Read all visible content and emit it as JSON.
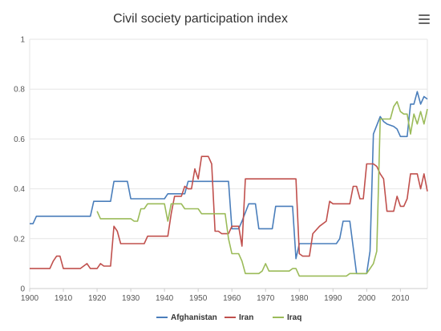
{
  "chart_data": {
    "type": "line",
    "title": "Civil society participation index",
    "xlim": [
      1900,
      2018
    ],
    "ylim": [
      0,
      1
    ],
    "x_ticks": [
      "1900",
      "1910",
      "1920",
      "1930",
      "1940",
      "1950",
      "1960",
      "1970",
      "1980",
      "1990",
      "2000",
      "2010"
    ],
    "y_ticks": [
      "0",
      "0.2",
      "0.4",
      "0.6",
      "0.8",
      "1"
    ],
    "legend_position": "bottom",
    "grid": true,
    "series": [
      {
        "name": "Afghanistan",
        "color": "#4a7ebb",
        "points": [
          [
            1900,
            0.26
          ],
          [
            1901,
            0.26
          ],
          [
            1902,
            0.29
          ],
          [
            1918,
            0.29
          ],
          [
            1919,
            0.35
          ],
          [
            1924,
            0.35
          ],
          [
            1925,
            0.43
          ],
          [
            1929,
            0.43
          ],
          [
            1930,
            0.36
          ],
          [
            1940,
            0.36
          ],
          [
            1941,
            0.38
          ],
          [
            1946,
            0.38
          ],
          [
            1947,
            0.43
          ],
          [
            1959,
            0.43
          ],
          [
            1960,
            0.24
          ],
          [
            1962,
            0.24
          ],
          [
            1963,
            0.27
          ],
          [
            1965,
            0.34
          ],
          [
            1967,
            0.34
          ],
          [
            1968,
            0.24
          ],
          [
            1972,
            0.24
          ],
          [
            1973,
            0.33
          ],
          [
            1978,
            0.33
          ],
          [
            1979,
            0.12
          ],
          [
            1980,
            0.18
          ],
          [
            1991,
            0.18
          ],
          [
            1992,
            0.2
          ],
          [
            1993,
            0.27
          ],
          [
            1995,
            0.27
          ],
          [
            1997,
            0.06
          ],
          [
            2000,
            0.06
          ],
          [
            2001,
            0.15
          ],
          [
            2002,
            0.62
          ],
          [
            2004,
            0.69
          ],
          [
            2005,
            0.67
          ],
          [
            2006,
            0.66
          ],
          [
            2008,
            0.65
          ],
          [
            2009,
            0.64
          ],
          [
            2010,
            0.61
          ],
          [
            2012,
            0.61
          ],
          [
            2013,
            0.74
          ],
          [
            2014,
            0.74
          ],
          [
            2015,
            0.79
          ],
          [
            2016,
            0.74
          ],
          [
            2017,
            0.77
          ],
          [
            2018,
            0.76
          ]
        ]
      },
      {
        "name": "Iran",
        "color": "#c0504d",
        "points": [
          [
            1900,
            0.08
          ],
          [
            1906,
            0.08
          ],
          [
            1907,
            0.11
          ],
          [
            1908,
            0.13
          ],
          [
            1909,
            0.13
          ],
          [
            1910,
            0.08
          ],
          [
            1915,
            0.08
          ],
          [
            1917,
            0.1
          ],
          [
            1918,
            0.08
          ],
          [
            1920,
            0.08
          ],
          [
            1921,
            0.1
          ],
          [
            1922,
            0.09
          ],
          [
            1924,
            0.09
          ],
          [
            1925,
            0.25
          ],
          [
            1926,
            0.23
          ],
          [
            1927,
            0.18
          ],
          [
            1934,
            0.18
          ],
          [
            1935,
            0.21
          ],
          [
            1941,
            0.21
          ],
          [
            1942,
            0.3
          ],
          [
            1943,
            0.37
          ],
          [
            1945,
            0.37
          ],
          [
            1946,
            0.41
          ],
          [
            1947,
            0.4
          ],
          [
            1948,
            0.4
          ],
          [
            1949,
            0.48
          ],
          [
            1950,
            0.44
          ],
          [
            1951,
            0.53
          ],
          [
            1953,
            0.53
          ],
          [
            1954,
            0.5
          ],
          [
            1955,
            0.23
          ],
          [
            1956,
            0.23
          ],
          [
            1957,
            0.22
          ],
          [
            1959,
            0.22
          ],
          [
            1960,
            0.25
          ],
          [
            1962,
            0.25
          ],
          [
            1963,
            0.17
          ],
          [
            1964,
            0.44
          ],
          [
            1979,
            0.44
          ],
          [
            1980,
            0.14
          ],
          [
            1981,
            0.13
          ],
          [
            1983,
            0.13
          ],
          [
            1984,
            0.22
          ],
          [
            1986,
            0.25
          ],
          [
            1988,
            0.27
          ],
          [
            1989,
            0.35
          ],
          [
            1990,
            0.34
          ],
          [
            1995,
            0.34
          ],
          [
            1996,
            0.41
          ],
          [
            1997,
            0.41
          ],
          [
            1998,
            0.36
          ],
          [
            1999,
            0.36
          ],
          [
            2000,
            0.5
          ],
          [
            2002,
            0.5
          ],
          [
            2003,
            0.49
          ],
          [
            2004,
            0.46
          ],
          [
            2005,
            0.44
          ],
          [
            2006,
            0.31
          ],
          [
            2008,
            0.31
          ],
          [
            2009,
            0.37
          ],
          [
            2010,
            0.33
          ],
          [
            2011,
            0.33
          ],
          [
            2012,
            0.36
          ],
          [
            2013,
            0.46
          ],
          [
            2015,
            0.46
          ],
          [
            2016,
            0.4
          ],
          [
            2017,
            0.46
          ],
          [
            2018,
            0.39
          ]
        ]
      },
      {
        "name": "Iraq",
        "color": "#9bbb59",
        "points": [
          [
            1920,
            0.31
          ],
          [
            1921,
            0.28
          ],
          [
            1930,
            0.28
          ],
          [
            1931,
            0.27
          ],
          [
            1932,
            0.27
          ],
          [
            1933,
            0.32
          ],
          [
            1934,
            0.32
          ],
          [
            1935,
            0.34
          ],
          [
            1940,
            0.34
          ],
          [
            1941,
            0.27
          ],
          [
            1942,
            0.34
          ],
          [
            1945,
            0.34
          ],
          [
            1946,
            0.32
          ],
          [
            1950,
            0.32
          ],
          [
            1951,
            0.3
          ],
          [
            1958,
            0.3
          ],
          [
            1959,
            0.2
          ],
          [
            1960,
            0.14
          ],
          [
            1962,
            0.14
          ],
          [
            1963,
            0.11
          ],
          [
            1964,
            0.06
          ],
          [
            1968,
            0.06
          ],
          [
            1969,
            0.07
          ],
          [
            1970,
            0.1
          ],
          [
            1971,
            0.07
          ],
          [
            1977,
            0.07
          ],
          [
            1978,
            0.08
          ],
          [
            1979,
            0.08
          ],
          [
            1980,
            0.05
          ],
          [
            1994,
            0.05
          ],
          [
            1995,
            0.06
          ],
          [
            2000,
            0.06
          ],
          [
            2002,
            0.1
          ],
          [
            2003,
            0.15
          ],
          [
            2004,
            0.68
          ],
          [
            2007,
            0.68
          ],
          [
            2008,
            0.73
          ],
          [
            2009,
            0.75
          ],
          [
            2010,
            0.71
          ],
          [
            2011,
            0.7
          ],
          [
            2012,
            0.7
          ],
          [
            2013,
            0.62
          ],
          [
            2014,
            0.7
          ],
          [
            2015,
            0.66
          ],
          [
            2016,
            0.71
          ],
          [
            2017,
            0.66
          ],
          [
            2018,
            0.72
          ]
        ]
      }
    ]
  },
  "toolbar": {
    "menu_icon": "hamburger-menu-icon"
  }
}
